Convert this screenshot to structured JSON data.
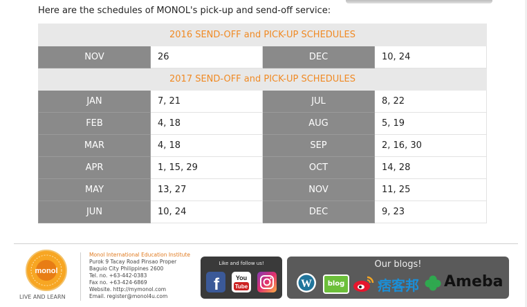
{
  "intro": "Here are the schedules of MONOL's pick-up and send-off service:",
  "schedule_2016": {
    "title": "2016 SEND-OFF and PICK-UP SCHEDULES",
    "rows": [
      {
        "m1": "NOV",
        "d1": "26",
        "m2": "DEC",
        "d2": "10, 24"
      }
    ]
  },
  "schedule_2017": {
    "title": "2017 SEND-OFF and PICK-UP SCHEDULES",
    "rows": [
      {
        "m1": "JAN",
        "d1": "7, 21",
        "m2": "JUL",
        "d2": "8, 22"
      },
      {
        "m1": "FEB",
        "d1": "4, 18",
        "m2": "AUG",
        "d2": "5, 19"
      },
      {
        "m1": "MAR",
        "d1": "4, 18",
        "m2": "SEP",
        "d2": "2, 16, 30"
      },
      {
        "m1": "APR",
        "d1": "1, 15, 29",
        "m2": "OCT",
        "d2": "14, 28"
      },
      {
        "m1": "MAY",
        "d1": "13, 27",
        "m2": "NOV",
        "d2": "11, 25"
      },
      {
        "m1": "JUN",
        "d1": "10, 24",
        "m2": "DEC",
        "d2": "9, 23"
      }
    ]
  },
  "footer": {
    "logo_text": "monol",
    "tagline": "LIVE AND LEARN",
    "institute": "Monol International Education Institute",
    "address1": "Purok 9 Tacay Road Pinsao Proper",
    "address2": "Baguio City Philippines 2600",
    "tel": "Tel. no. +63-442-0383",
    "fax": "Fax no. +63-424-6869",
    "website": "Website. http://mymonol.com",
    "email": "Email. register@monol4u.com",
    "follow_label": "Like and follow us!",
    "blogs_label": "Our blogs!",
    "blog_badge": "blog",
    "cn_blog": "痞客邦",
    "ameba": "Ameba",
    "youtube_top": "You",
    "youtube_bottom": "Tube"
  },
  "colors": {
    "accent": "#f08a24",
    "month_bg": "#8a8a8a",
    "header_bg": "#e8e8e8"
  }
}
